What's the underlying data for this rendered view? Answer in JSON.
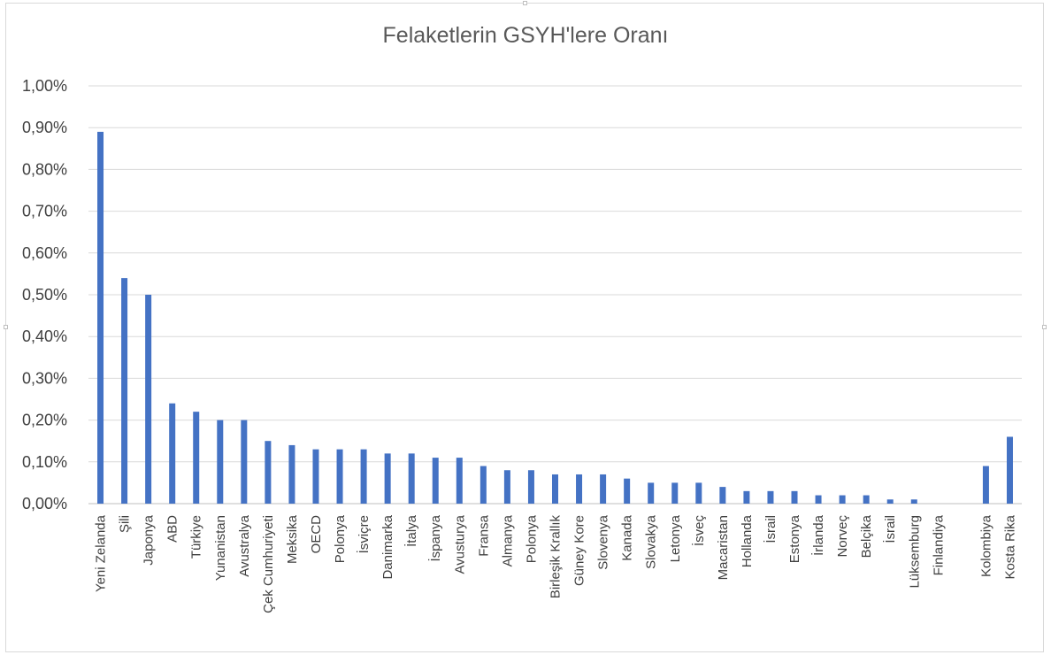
{
  "chart_data": {
    "type": "bar",
    "title": "Felaketlerin GSYH'lere Oranı",
    "xlabel": "",
    "ylabel": "",
    "ylim": [
      0,
      1.0
    ],
    "yticks": [
      "0,00%",
      "0,10%",
      "0,20%",
      "0,30%",
      "0,40%",
      "0,50%",
      "0,60%",
      "0,70%",
      "0,80%",
      "0,90%",
      "1,00%"
    ],
    "grid": true,
    "bar_color": "#4472c4",
    "categories": [
      "Yeni Zelanda",
      "Şili",
      "Japonya",
      "ABD",
      "Türkiye",
      "Yunanistan",
      "Avustralya",
      "Çek Cumhuriyeti",
      "Meksika",
      "OECD",
      "Polonya",
      "İsviçre",
      "Danimarka",
      "İtalya",
      "İspanya",
      "Avusturya",
      "Fransa",
      "Almanya",
      "Polonya",
      "Birleşik Krallık",
      "Güney Kore",
      "Slovenya",
      "Kanada",
      "Slovakya",
      "Letonya",
      "İsveç",
      "Macaristan",
      "Hollanda",
      "İsrail",
      "Estonya",
      "İrlanda",
      "Norveç",
      "Belçika",
      "İsrail",
      "Lüksemburg",
      "Finlandiya",
      "",
      "Kolombiya",
      "Kosta Rika"
    ],
    "values": [
      0.89,
      0.54,
      0.5,
      0.24,
      0.22,
      0.2,
      0.2,
      0.15,
      0.14,
      0.13,
      0.13,
      0.13,
      0.12,
      0.12,
      0.11,
      0.11,
      0.09,
      0.08,
      0.08,
      0.07,
      0.07,
      0.07,
      0.06,
      0.05,
      0.05,
      0.05,
      0.04,
      0.03,
      0.03,
      0.03,
      0.02,
      0.02,
      0.02,
      0.01,
      0.01,
      0.0,
      null,
      0.09,
      0.16
    ]
  }
}
